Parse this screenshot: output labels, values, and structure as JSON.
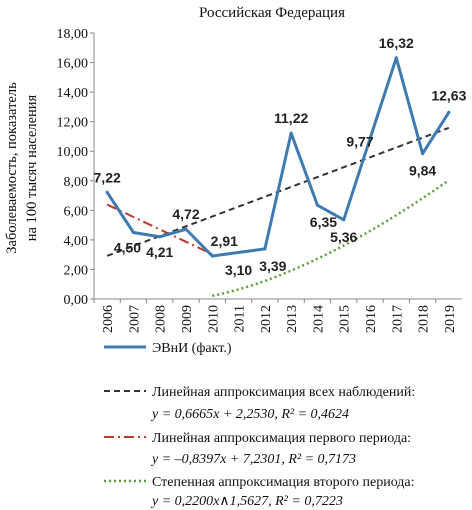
{
  "chart_data": {
    "type": "line",
    "title": "Российская Федерация",
    "ylabel_line1": "Заболеваемость, показатель",
    "ylabel_line2": "на 100 тысяч населения",
    "xlabel": "",
    "categories": [
      "2006",
      "2007",
      "2008",
      "2009",
      "2010",
      "2011",
      "2012",
      "2013",
      "2014",
      "2015",
      "2016",
      "2017",
      "2018",
      "2019"
    ],
    "ylim": [
      0,
      18
    ],
    "y_ticks": [
      "0,00",
      "2,00",
      "4,00",
      "6,00",
      "8,00",
      "10,00",
      "12,00",
      "14,00",
      "16,00",
      "18,00"
    ],
    "grid": false,
    "legend_position": "bottom",
    "series": [
      {
        "name": "ЭВнИ (факт.)",
        "color": "#3d7bb0",
        "style": "solid",
        "x": [
          2006,
          2007,
          2008,
          2009,
          2010,
          2012,
          2013,
          2014,
          2015,
          2017,
          2018,
          2019
        ],
        "values": [
          7.22,
          4.5,
          4.21,
          4.72,
          2.91,
          3.39,
          11.22,
          6.35,
          5.36,
          16.32,
          9.84,
          12.63
        ],
        "labels": [
          "7,22",
          "4,50",
          "4,21",
          "4,72",
          "2,91",
          "3,39",
          "11,22",
          "6,35",
          "5,36",
          "16,32",
          "9,84",
          "12,63"
        ],
        "extra_labels": [
          {
            "text": "3,10",
            "x": 2011,
            "y": 3.1
          },
          {
            "text": "9,77",
            "x": 2016,
            "y": 9.77
          }
        ]
      },
      {
        "name": "Линейная аппроксимация всех наблюдений:",
        "equation": "y = 0,6665x + 2,2530,  R² = 0,4624",
        "color": "#333333",
        "style": "dashed",
        "fit": {
          "kind": "linear",
          "a": 0.6665,
          "b": 2.253,
          "x_start_index": 1,
          "x_end_index": 14
        }
      },
      {
        "name": "Линейная аппроксимация первого периода:",
        "equation": "y = –0,8397x + 7,2301,  R² = 0,7173",
        "color": "#c0392b",
        "style": "dashdot",
        "fit": {
          "kind": "linear",
          "a": -0.8397,
          "b": 7.2301,
          "x_start_index": 1,
          "x_end_index": 5
        }
      },
      {
        "name": "Степенная аппроксимация второго периода:",
        "equation": "y = 0,2200x∧1,5627,  R² = 0,7223",
        "color": "#5a9e3a",
        "style": "dotted",
        "fit": {
          "kind": "power",
          "a": 0.22,
          "p": 1.5627,
          "x_start_index": 5,
          "x_end_index": 14
        }
      }
    ]
  }
}
